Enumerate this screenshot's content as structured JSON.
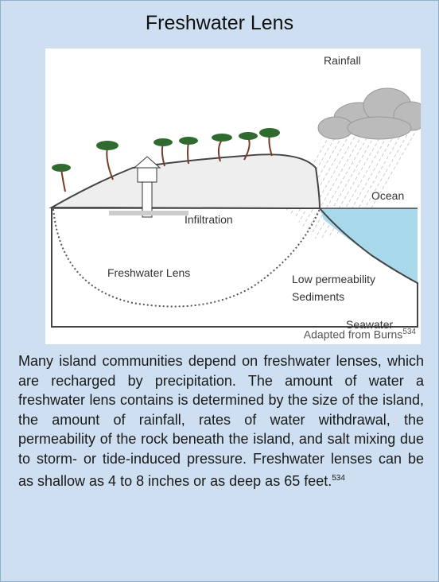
{
  "title": "Freshwater Lens",
  "diagram": {
    "labels": [
      "Rainfall",
      "Ocean",
      "Infiltration",
      "Freshwater Lens",
      "Low permeability",
      "Sediments",
      "Seawater"
    ]
  },
  "credit": {
    "text": "Adapted from Burns",
    "ref": "534"
  },
  "body": {
    "text": "Many island communities depend on freshwater lenses, which are recharged by precipitation. The amount of water a freshwater lens contains is determined by the size of the island, the amount of rainfall, rates of water withdrawal, the permeability of the rock beneath the island, and salt mixing due to storm- or tide-induced pressure. Freshwater lenses can be as shallow as 4 to 8 inches or as deep as 65 feet.",
    "ref": "534"
  }
}
